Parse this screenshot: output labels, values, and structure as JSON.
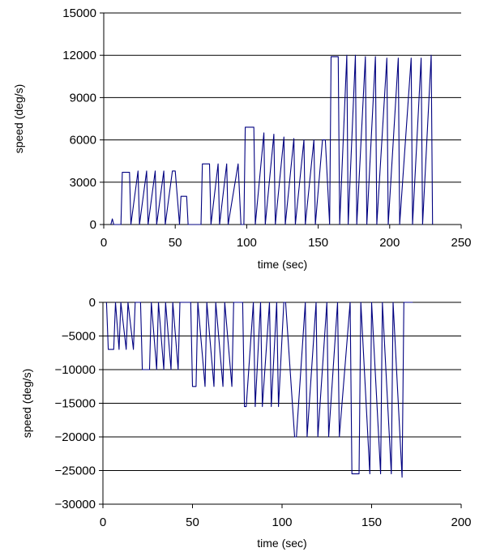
{
  "chart_data": [
    {
      "type": "line",
      "title": "",
      "xlabel": "time (sec)",
      "ylabel": "speed (deg/s)",
      "xlim": [
        0,
        250
      ],
      "ylim": [
        0,
        15000
      ],
      "xticks": [
        "0",
        "50",
        "100",
        "150",
        "200",
        "250"
      ],
      "yticks": [
        "0",
        "3000",
        "6000",
        "9000",
        "12000",
        "15000"
      ],
      "grid": "horizontal",
      "legend": "none",
      "line_color": "#000080",
      "series": [
        {
          "x": [
            5,
            6,
            7,
            12,
            13,
            18,
            19,
            24,
            25,
            30,
            31,
            36,
            37,
            42,
            43,
            48,
            50,
            53,
            54,
            58,
            59,
            68,
            69,
            74,
            75,
            80,
            81,
            86,
            87,
            94,
            96,
            98,
            99,
            105,
            106,
            112,
            113,
            119,
            120,
            126,
            127,
            133,
            134,
            140,
            141,
            147,
            148,
            153,
            155,
            158,
            159,
            164,
            165,
            170,
            171,
            176,
            177,
            183,
            184,
            190,
            191,
            198,
            199,
            206,
            207,
            215,
            216,
            222,
            223,
            229,
            230
          ],
          "y": [
            0,
            400,
            0,
            0,
            3700,
            3700,
            0,
            3800,
            0,
            3800,
            0,
            3800,
            0,
            3800,
            0,
            3800,
            3800,
            0,
            2000,
            2000,
            0,
            0,
            4300,
            4300,
            0,
            4300,
            0,
            4300,
            0,
            4300,
            0,
            0,
            6900,
            6900,
            0,
            6500,
            0,
            6400,
            0,
            6200,
            0,
            6100,
            0,
            6000,
            0,
            6000,
            0,
            6000,
            6000,
            0,
            11900,
            11900,
            0,
            12000,
            0,
            12000,
            0,
            11900,
            0,
            11900,
            0,
            11800,
            0,
            11800,
            0,
            11800,
            0,
            11800,
            0,
            12000,
            0
          ]
        }
      ]
    },
    {
      "type": "line",
      "title": "",
      "xlabel": "time (sec)",
      "ylabel": "speed (deg/s)",
      "xlim": [
        0,
        200
      ],
      "ylim": [
        -30000,
        0
      ],
      "xticks": [
        "0",
        "50",
        "100",
        "150",
        "200"
      ],
      "yticks": [
        "−30000",
        "−25000",
        "−20000",
        "−15000",
        "−10000",
        "−5000",
        "0"
      ],
      "grid": "horizontal",
      "legend": "none",
      "line_color": "#000080",
      "series": [
        {
          "x": [
            2,
            3,
            6,
            7,
            9,
            10,
            13,
            14,
            17,
            18,
            21,
            22,
            26,
            27,
            30,
            31,
            34,
            35,
            38,
            39,
            42,
            43,
            49,
            50,
            52,
            53,
            57,
            58,
            62,
            63,
            67,
            68,
            72,
            73,
            77,
            78,
            79,
            80,
            84,
            85,
            88,
            89,
            93,
            94,
            97,
            98,
            101,
            102,
            107,
            108,
            113,
            114,
            119,
            120,
            125,
            126,
            131,
            132,
            138,
            139,
            143,
            144,
            149,
            150,
            155,
            156,
            161,
            162,
            167,
            168,
            172,
            173
          ],
          "y": [
            0,
            -7000,
            -7000,
            0,
            -7000,
            0,
            -7000,
            0,
            -7000,
            0,
            0,
            -10000,
            -10000,
            0,
            -10000,
            0,
            -10000,
            0,
            -10000,
            0,
            -10000,
            0,
            0,
            -12500,
            -12500,
            0,
            -12500,
            0,
            -12500,
            0,
            -12500,
            0,
            -12500,
            0,
            0,
            0,
            -15500,
            -15500,
            0,
            -15500,
            0,
            -15500,
            0,
            -15500,
            0,
            -15500,
            0,
            0,
            -20000,
            -20000,
            0,
            -20000,
            0,
            -20000,
            0,
            -20000,
            0,
            -20000,
            0,
            -25500,
            -25500,
            0,
            -25500,
            0,
            -25500,
            0,
            -25500,
            0,
            -26000,
            0,
            0,
            0
          ]
        }
      ]
    }
  ]
}
